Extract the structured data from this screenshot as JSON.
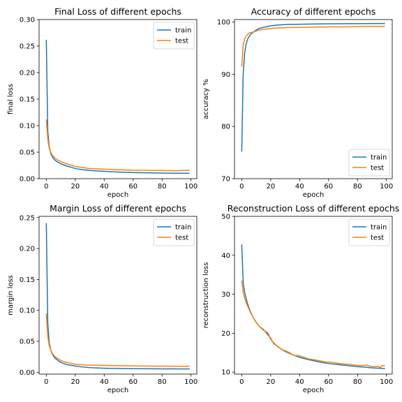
{
  "colors": {
    "train": "#1f77b4",
    "test": "#ff7f0e"
  },
  "chart_data": [
    {
      "type": "line",
      "title": "Final Loss of different epochs",
      "xlabel": "epoch",
      "ylabel": "final loss",
      "xlim": [
        -5,
        104
      ],
      "ylim": [
        0,
        0.3
      ],
      "xticks": [
        0,
        20,
        40,
        60,
        80,
        100
      ],
      "yticks": [
        0.0,
        0.05,
        0.1,
        0.15,
        0.2,
        0.25,
        0.3
      ],
      "ytick_labels": [
        "0.00",
        "0.05",
        "0.10",
        "0.15",
        "0.20",
        "0.25",
        "0.30"
      ],
      "legend": "top-right",
      "series": [
        {
          "name": "train",
          "points": [
            [
              0,
              0.262
            ],
            [
              1,
              0.09
            ],
            [
              2,
              0.06
            ],
            [
              3,
              0.048
            ],
            [
              4,
              0.042
            ],
            [
              5,
              0.038
            ],
            [
              6,
              0.035
            ],
            [
              8,
              0.031
            ],
            [
              10,
              0.028
            ],
            [
              12,
              0.026
            ],
            [
              15,
              0.023
            ],
            [
              18,
              0.021
            ],
            [
              20,
              0.019
            ],
            [
              25,
              0.017
            ],
            [
              30,
              0.0155
            ],
            [
              35,
              0.0145
            ],
            [
              40,
              0.0138
            ],
            [
              50,
              0.0125
            ],
            [
              60,
              0.0115
            ],
            [
              70,
              0.011
            ],
            [
              80,
              0.0105
            ],
            [
              90,
              0.0102
            ],
            [
              99,
              0.01
            ]
          ]
        },
        {
          "name": "test",
          "points": [
            [
              0,
              0.112
            ],
            [
              1,
              0.075
            ],
            [
              2,
              0.057
            ],
            [
              3,
              0.05
            ],
            [
              4,
              0.045
            ],
            [
              5,
              0.042
            ],
            [
              6,
              0.039
            ],
            [
              8,
              0.035
            ],
            [
              10,
              0.032
            ],
            [
              12,
              0.03
            ],
            [
              15,
              0.027
            ],
            [
              18,
              0.025
            ],
            [
              20,
              0.023
            ],
            [
              25,
              0.021
            ],
            [
              30,
              0.019
            ],
            [
              35,
              0.0185
            ],
            [
              40,
              0.018
            ],
            [
              50,
              0.017
            ],
            [
              60,
              0.016
            ],
            [
              70,
              0.0158
            ],
            [
              80,
              0.0155
            ],
            [
              90,
              0.015
            ],
            [
              99,
              0.016
            ]
          ]
        }
      ]
    },
    {
      "type": "line",
      "title": "Accuracy of different epochs",
      "xlabel": "epoch",
      "ylabel": "accuracy %",
      "xlim": [
        -5,
        104
      ],
      "ylim": [
        70,
        100.5
      ],
      "xticks": [
        0,
        20,
        40,
        60,
        80,
        100
      ],
      "yticks": [
        70,
        80,
        90,
        100
      ],
      "ytick_labels": [
        "70",
        "80",
        "90",
        "100"
      ],
      "legend": "bottom-right",
      "series": [
        {
          "name": "train",
          "points": [
            [
              0,
              75.2
            ],
            [
              1,
              90
            ],
            [
              2,
              94
            ],
            [
              3,
              95.8
            ],
            [
              4,
              96.7
            ],
            [
              5,
              97.2
            ],
            [
              6,
              97.6
            ],
            [
              8,
              98.1
            ],
            [
              10,
              98.5
            ],
            [
              12,
              98.8
            ],
            [
              15,
              99.0
            ],
            [
              20,
              99.3
            ],
            [
              25,
              99.45
            ],
            [
              30,
              99.55
            ],
            [
              40,
              99.6
            ],
            [
              50,
              99.65
            ],
            [
              60,
              99.68
            ],
            [
              70,
              99.7
            ],
            [
              80,
              99.72
            ],
            [
              90,
              99.73
            ],
            [
              99,
              99.75
            ]
          ]
        },
        {
          "name": "test",
          "points": [
            [
              0,
              91.5
            ],
            [
              1,
              95.5
            ],
            [
              2,
              96.8
            ],
            [
              3,
              97.3
            ],
            [
              4,
              97.6
            ],
            [
              5,
              97.9
            ],
            [
              6,
              98.0
            ],
            [
              8,
              98.1
            ],
            [
              10,
              98.3
            ],
            [
              12,
              98.5
            ],
            [
              15,
              98.6
            ],
            [
              20,
              98.8
            ],
            [
              25,
              98.9
            ],
            [
              30,
              98.95
            ],
            [
              40,
              99.0
            ],
            [
              50,
              99.05
            ],
            [
              60,
              99.1
            ],
            [
              70,
              99.1
            ],
            [
              80,
              99.15
            ],
            [
              90,
              99.2
            ],
            [
              99,
              99.2
            ]
          ]
        }
      ]
    },
    {
      "type": "line",
      "title": "Margin Loss of different epochs",
      "xlabel": "epoch",
      "ylabel": "margin loss",
      "xlim": [
        -5,
        104
      ],
      "ylim": [
        -0.003,
        0.252
      ],
      "xticks": [
        0,
        20,
        40,
        60,
        80,
        100
      ],
      "yticks": [
        0.0,
        0.05,
        0.1,
        0.15,
        0.2,
        0.25
      ],
      "ytick_labels": [
        "0.00",
        "0.05",
        "0.10",
        "0.15",
        "0.20",
        "0.25"
      ],
      "legend": "top-right",
      "series": [
        {
          "name": "train",
          "points": [
            [
              0,
              0.241
            ],
            [
              1,
              0.08
            ],
            [
              2,
              0.048
            ],
            [
              3,
              0.036
            ],
            [
              4,
              0.03
            ],
            [
              5,
              0.026
            ],
            [
              6,
              0.023
            ],
            [
              8,
              0.019
            ],
            [
              10,
              0.016
            ],
            [
              12,
              0.014
            ],
            [
              15,
              0.012
            ],
            [
              18,
              0.011
            ],
            [
              20,
              0.01
            ],
            [
              25,
              0.0085
            ],
            [
              30,
              0.0075
            ],
            [
              40,
              0.0065
            ],
            [
              50,
              0.006
            ],
            [
              60,
              0.0058
            ],
            [
              70,
              0.0056
            ],
            [
              80,
              0.0055
            ],
            [
              90,
              0.0054
            ],
            [
              99,
              0.0053
            ]
          ]
        },
        {
          "name": "test",
          "points": [
            [
              0,
              0.095
            ],
            [
              1,
              0.058
            ],
            [
              2,
              0.043
            ],
            [
              3,
              0.036
            ],
            [
              4,
              0.031
            ],
            [
              5,
              0.028
            ],
            [
              6,
              0.025
            ],
            [
              8,
              0.022
            ],
            [
              10,
              0.019
            ],
            [
              12,
              0.017
            ],
            [
              15,
              0.0155
            ],
            [
              18,
              0.014
            ],
            [
              20,
              0.013
            ],
            [
              25,
              0.012
            ],
            [
              30,
              0.0115
            ],
            [
              40,
              0.011
            ],
            [
              50,
              0.0105
            ],
            [
              60,
              0.0102
            ],
            [
              70,
              0.01
            ],
            [
              80,
              0.0098
            ],
            [
              90,
              0.0097
            ],
            [
              99,
              0.0095
            ]
          ]
        }
      ]
    },
    {
      "type": "line",
      "title": "Reconstruction Loss of different epochs",
      "xlabel": "epoch",
      "ylabel": "reconstruction loss",
      "xlim": [
        -5,
        104
      ],
      "ylim": [
        9.5,
        50
      ],
      "xticks": [
        0,
        20,
        40,
        60,
        80,
        100
      ],
      "yticks": [
        10,
        20,
        30,
        40,
        50
      ],
      "ytick_labels": [
        "10",
        "20",
        "30",
        "40",
        "50"
      ],
      "legend": "top-right",
      "series": [
        {
          "name": "train",
          "points": [
            [
              0,
              42.8
            ],
            [
              1,
              33
            ],
            [
              2,
              30.5
            ],
            [
              3,
              29
            ],
            [
              4,
              27.6
            ],
            [
              5,
              26.5
            ],
            [
              6,
              25.5
            ],
            [
              8,
              24
            ],
            [
              10,
              22.8
            ],
            [
              12,
              21.8
            ],
            [
              15,
              20.8
            ],
            [
              18,
              20
            ],
            [
              20,
              18.5
            ],
            [
              22,
              17.5
            ],
            [
              25,
              16.5
            ],
            [
              30,
              15.3
            ],
            [
              35,
              14.5
            ],
            [
              40,
              13.8
            ],
            [
              45,
              13.3
            ],
            [
              50,
              12.9
            ],
            [
              55,
              12.5
            ],
            [
              60,
              12.2
            ],
            [
              65,
              12.0
            ],
            [
              70,
              11.8
            ],
            [
              75,
              11.6
            ],
            [
              80,
              11.4
            ],
            [
              85,
              11.3
            ],
            [
              90,
              11.1
            ],
            [
              95,
              11.0
            ],
            [
              99,
              10.9
            ]
          ]
        },
        {
          "name": "test",
          "points": [
            [
              0,
              33.5
            ],
            [
              1,
              30.5
            ],
            [
              2,
              29
            ],
            [
              3,
              28
            ],
            [
              4,
              27
            ],
            [
              5,
              26.2
            ],
            [
              6,
              25.3
            ],
            [
              8,
              24
            ],
            [
              10,
              22.7
            ],
            [
              12,
              21.8
            ],
            [
              15,
              21
            ],
            [
              18,
              19.5
            ],
            [
              20,
              18.8
            ],
            [
              22,
              17.3
            ],
            [
              25,
              16.6
            ],
            [
              28,
              15.7
            ],
            [
              30,
              15.5
            ],
            [
              33,
              15
            ],
            [
              36,
              14.3
            ],
            [
              40,
              14.2
            ],
            [
              43,
              13.8
            ],
            [
              46,
              13.4
            ],
            [
              50,
              13.2
            ],
            [
              54,
              12.9
            ],
            [
              58,
              12.6
            ],
            [
              62,
              12.6
            ],
            [
              66,
              12.3
            ],
            [
              70,
              12.1
            ],
            [
              74,
              12.0
            ],
            [
              78,
              11.8
            ],
            [
              82,
              11.7
            ],
            [
              86,
              11.8
            ],
            [
              90,
              11.4
            ],
            [
              94,
              11.5
            ],
            [
              96,
              11.2
            ],
            [
              97,
              11.7
            ],
            [
              99,
              11.6
            ]
          ]
        }
      ]
    }
  ]
}
